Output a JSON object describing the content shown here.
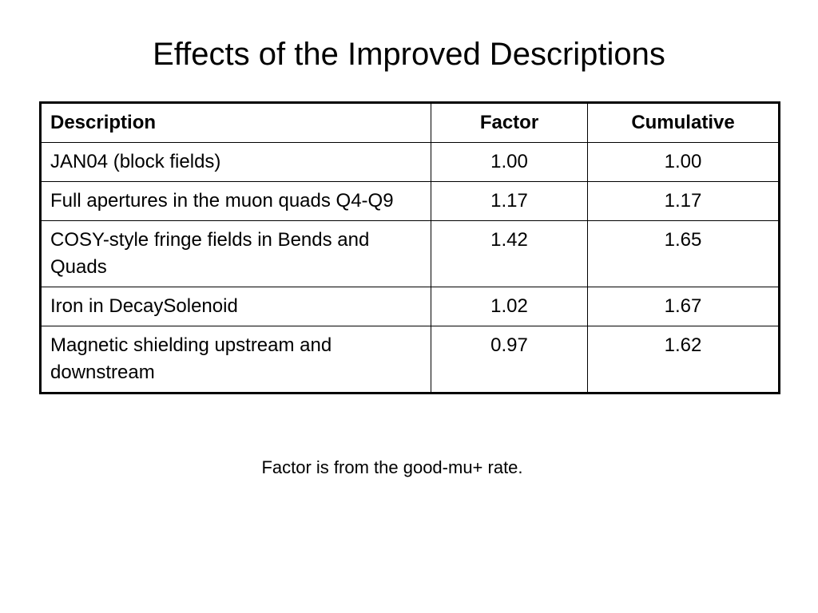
{
  "title": "Effects of the Improved Descriptions",
  "table": {
    "headers": {
      "description": "Description",
      "factor": "Factor",
      "cumulative": "Cumulative"
    },
    "rows": [
      {
        "description": "JAN04 (block fields)",
        "factor": "1.00",
        "cumulative": "1.00"
      },
      {
        "description": "Full apertures in the muon quads Q4-Q9",
        "factor": "1.17",
        "cumulative": "1.17"
      },
      {
        "description": "COSY-style fringe fields in Bends and Quads",
        "factor": "1.42",
        "cumulative": "1.65"
      },
      {
        "description": "Iron in DecaySolenoid",
        "factor": "1.02",
        "cumulative": "1.67"
      },
      {
        "description": "Magnetic shielding upstream and downstream",
        "factor": "0.97",
        "cumulative": "1.62"
      }
    ]
  },
  "footnote": "Factor is from the good-mu+ rate."
}
